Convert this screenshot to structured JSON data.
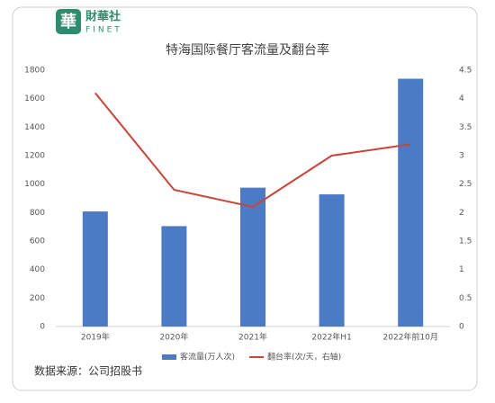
{
  "logo": {
    "icon": "華",
    "name": "財華社",
    "latin": "FINET"
  },
  "chart_data": {
    "type": "bar",
    "title": "特海国际餐厅客流量及翻台率",
    "categories": [
      "2019年",
      "2020年",
      "2021年",
      "2022年H1",
      "2022年前10月"
    ],
    "series": [
      {
        "name": "客流量(万人次)",
        "type": "bar",
        "color": "#4a7bc4",
        "values": [
          808,
          705,
          975,
          928,
          1740
        ]
      },
      {
        "name": "翻台率(次/天，右轴)",
        "type": "line",
        "axis": "y2",
        "color": "#c8453a",
        "values": [
          4.1,
          2.4,
          2.1,
          3.0,
          3.2
        ]
      }
    ],
    "ylim": [
      0,
      1800
    ],
    "yticks": [
      0,
      200,
      400,
      600,
      800,
      1000,
      1200,
      1400,
      1600,
      1800
    ],
    "y2lim": [
      0,
      4.5
    ],
    "y2ticks": [
      0,
      0.5,
      1,
      1.5,
      2,
      2.5,
      3,
      3.5,
      4,
      4.5
    ],
    "legend": "bottom",
    "source": "数据来源：公司招股书"
  }
}
